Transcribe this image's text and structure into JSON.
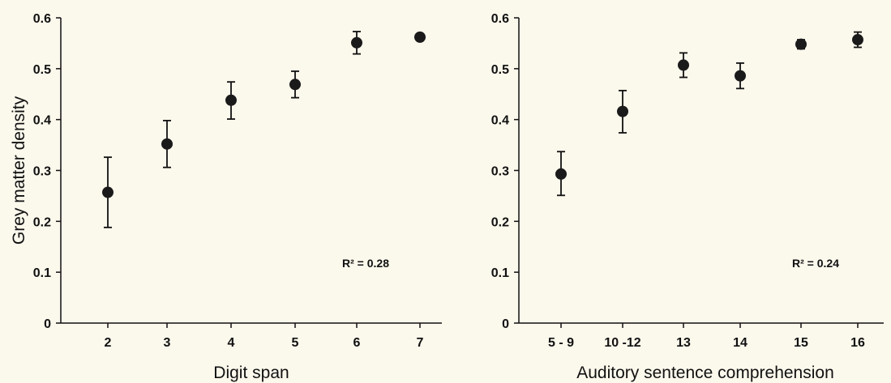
{
  "chart_data": [
    {
      "type": "scatter",
      "panel": "left",
      "xlabel": "Digit span",
      "ylabel": "Grey matter density",
      "categories": [
        "2",
        "3",
        "4",
        "5",
        "6",
        "7"
      ],
      "values": [
        0.257,
        0.352,
        0.438,
        0.469,
        0.551,
        0.562
      ],
      "error_low": [
        0.188,
        0.306,
        0.401,
        0.443,
        0.529,
        0.556
      ],
      "error_high": [
        0.326,
        0.398,
        0.474,
        0.495,
        0.573,
        0.568
      ],
      "ylim": [
        0,
        0.6
      ],
      "yticks": [
        "0",
        "0.1",
        "0.2",
        "0.3",
        "0.4",
        "0.5",
        "0.6"
      ],
      "annotation": "R² = 0.28",
      "grid": false,
      "marker_color": "#1a1a1a"
    },
    {
      "type": "scatter",
      "panel": "right",
      "xlabel": "Auditory sentence comprehension",
      "ylabel": "",
      "categories": [
        "5 - 9",
        "10 -12",
        "13",
        "14",
        "15",
        "16"
      ],
      "values": [
        0.293,
        0.416,
        0.507,
        0.486,
        0.548,
        0.557
      ],
      "error_low": [
        0.251,
        0.374,
        0.483,
        0.461,
        0.539,
        0.542
      ],
      "error_high": [
        0.337,
        0.457,
        0.531,
        0.511,
        0.557,
        0.572
      ],
      "ylim": [
        0,
        0.6
      ],
      "yticks": [
        "0",
        "0.1",
        "0.2",
        "0.3",
        "0.4",
        "0.5",
        "0.6"
      ],
      "annotation": "R² = 0.24",
      "grid": false,
      "marker_color": "#1a1a1a"
    }
  ]
}
